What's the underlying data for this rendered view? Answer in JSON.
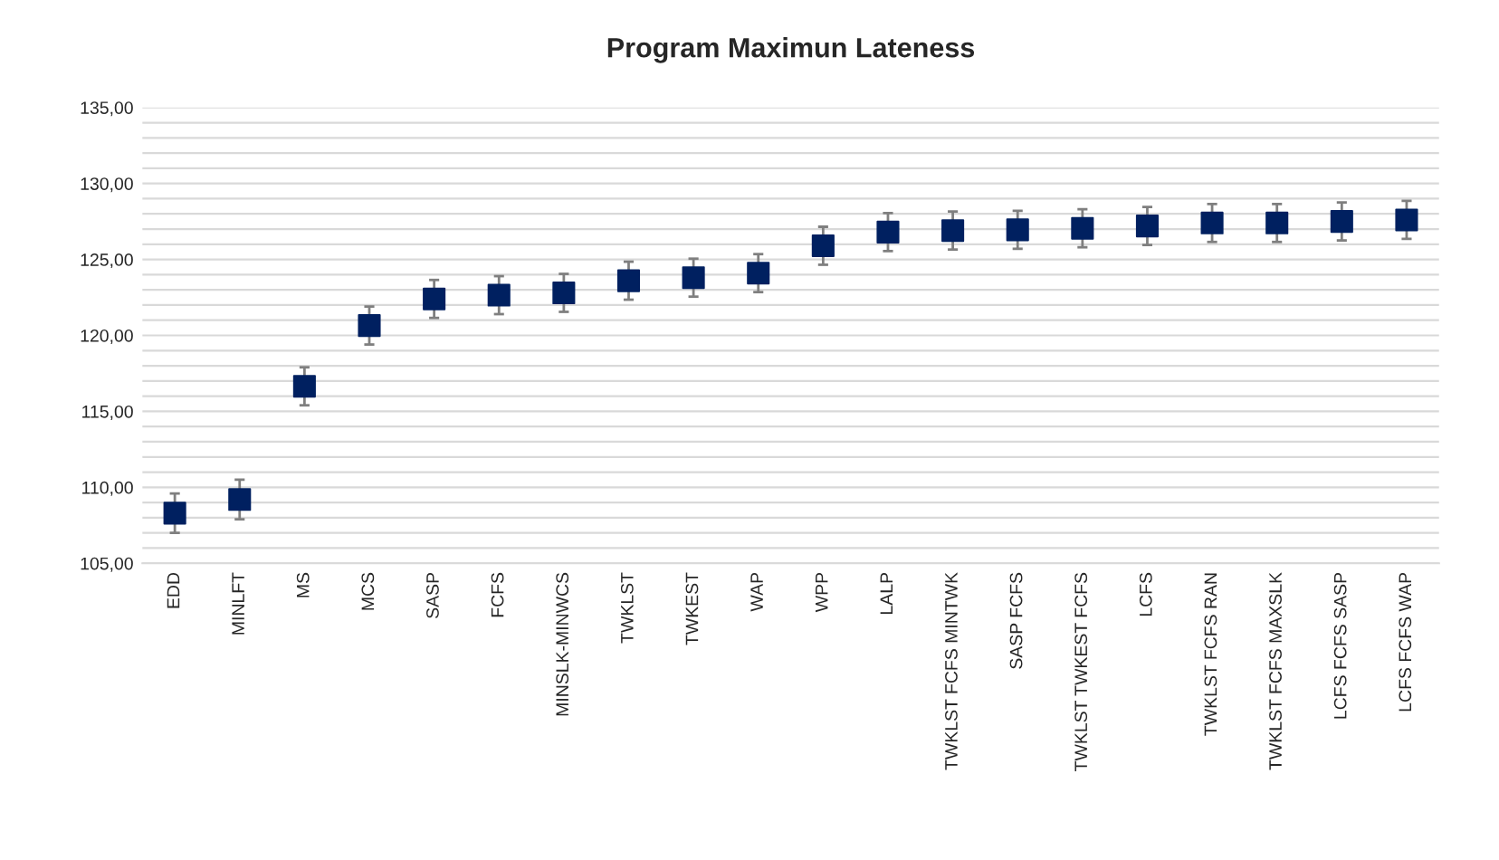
{
  "chart_data": {
    "type": "scatter",
    "title": "Program Maximun Lateness",
    "categories": [
      "EDD",
      "MINLFT",
      "MS",
      "MCS",
      "SASP",
      "FCFS",
      "MINSLK-MINWCS",
      "TWKLST",
      "TWKEST",
      "WAP",
      "WPP",
      "LALP",
      "TWKLST FCFS MINTWK",
      "SASP FCFS",
      "TWKLST TWKEST FCFS",
      "LCFS",
      "TWKLST FCFS RAN",
      "TWKLST FCFS MAXSLK",
      "LCFS FCFS SASP",
      "LCFS FCFS WAP"
    ],
    "series": [
      {
        "color": "#002060",
        "values": [
          108.3,
          109.2,
          116.65,
          120.65,
          122.4,
          122.65,
          122.8,
          123.6,
          123.8,
          124.1,
          125.9,
          126.8,
          126.9,
          126.95,
          127.05,
          127.2,
          127.4,
          127.4,
          127.5,
          127.6
        ],
        "errors": [
          1.3,
          1.3,
          1.25,
          1.25,
          1.25,
          1.25,
          1.25,
          1.25,
          1.25,
          1.25,
          1.25,
          1.25,
          1.25,
          1.25,
          1.25,
          1.25,
          1.25,
          1.25,
          1.25,
          1.25
        ]
      }
    ],
    "ylim": [
      105,
      135
    ],
    "yticks": [
      {
        "value": 105,
        "label": "105,00"
      },
      {
        "value": 106,
        "label": null
      },
      {
        "value": 107,
        "label": null
      },
      {
        "value": 108,
        "label": null
      },
      {
        "value": 109,
        "label": null
      },
      {
        "value": 110,
        "label": "110,00"
      },
      {
        "value": 111,
        "label": null
      },
      {
        "value": 112,
        "label": null
      },
      {
        "value": 113,
        "label": null
      },
      {
        "value": 114,
        "label": null
      },
      {
        "value": 115,
        "label": "115,00"
      },
      {
        "value": 116,
        "label": null
      },
      {
        "value": 117,
        "label": null
      },
      {
        "value": 118,
        "label": null
      },
      {
        "value": 119,
        "label": null
      },
      {
        "value": 120,
        "label": "120,00"
      },
      {
        "value": 121,
        "label": null
      },
      {
        "value": 122,
        "label": null
      },
      {
        "value": 123,
        "label": null
      },
      {
        "value": 124,
        "label": null
      },
      {
        "value": 125,
        "label": "125,00"
      },
      {
        "value": 126,
        "label": null
      },
      {
        "value": 127,
        "label": null
      },
      {
        "value": 128,
        "label": null
      },
      {
        "value": 129,
        "label": null
      },
      {
        "value": 130,
        "label": "130,00"
      },
      {
        "value": 131,
        "label": null
      },
      {
        "value": 132,
        "label": null
      },
      {
        "value": 133,
        "label": null
      },
      {
        "value": 134,
        "label": null
      },
      {
        "value": 135,
        "label": "135,00"
      }
    ],
    "grid": "y",
    "marker": "square",
    "legend": false
  }
}
